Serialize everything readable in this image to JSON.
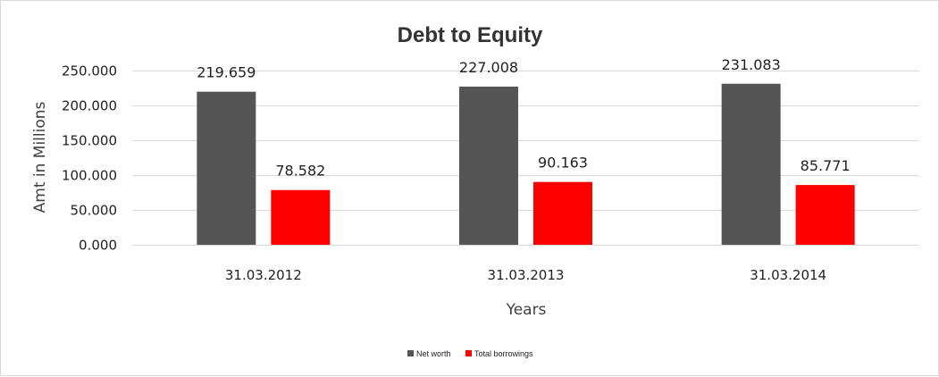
{
  "chart_data": {
    "type": "bar",
    "title": "Debt to Equity",
    "xlabel": "Years",
    "ylabel": "Amt in Millions",
    "categories": [
      "31.03.2012",
      "31.03.2013",
      "31.03.2014"
    ],
    "series": [
      {
        "name": "Net worth",
        "color": "#555555",
        "values": [
          219.659,
          227.008,
          231.083
        ],
        "labels": [
          "219.659",
          "227.008",
          "231.083"
        ]
      },
      {
        "name": "Total borrowings",
        "color": "#ff0000",
        "values": [
          78.582,
          90.163,
          85.771
        ],
        "labels": [
          "78.582",
          "90.163",
          "85.771"
        ]
      }
    ],
    "ylim": [
      0,
      250
    ],
    "yticks": [
      0,
      50,
      100,
      150,
      200,
      250
    ],
    "ytick_labels": [
      "0.000",
      "50.000",
      "100.000",
      "150.000",
      "200.000",
      "250.000"
    ],
    "grid": true,
    "legend": "bottom"
  }
}
